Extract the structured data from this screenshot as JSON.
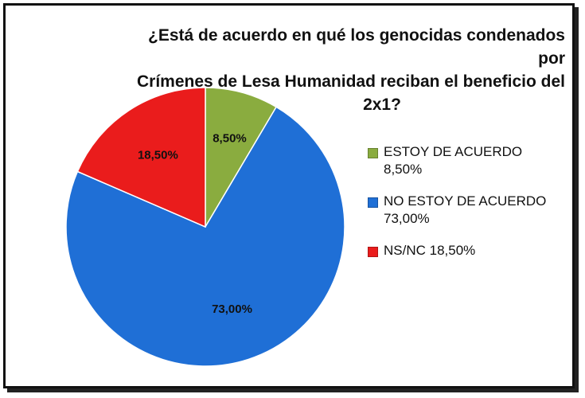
{
  "chart_data": {
    "type": "pie",
    "title": [
      "¿Está de acuerdo en qué los genocidas condenados por",
      "Crímenes de Lesa Humanidad  reciban el beneficio del",
      "2x1?"
    ],
    "slices": [
      {
        "label": "ESTOY DE ACUERDO",
        "value": 8.5,
        "display": "8,50%",
        "color": "#8aac3f"
      },
      {
        "label": "NO ESTOY DE ACUERDO",
        "value": 73.0,
        "display": "73,00%",
        "color": "#1f6fd6"
      },
      {
        "label": "NS/NC",
        "value": 18.5,
        "display": "18,50%",
        "color": "#ea1c1c"
      }
    ],
    "legend": {
      "placement": "right",
      "items": [
        {
          "line1": "ESTOY DE ACUERDO",
          "line2": "8,50%"
        },
        {
          "line1": "NO ESTOY DE ACUERDO",
          "line2": "73,00%"
        },
        {
          "line1": "NS/NC 18,50%",
          "line2": ""
        }
      ]
    }
  }
}
